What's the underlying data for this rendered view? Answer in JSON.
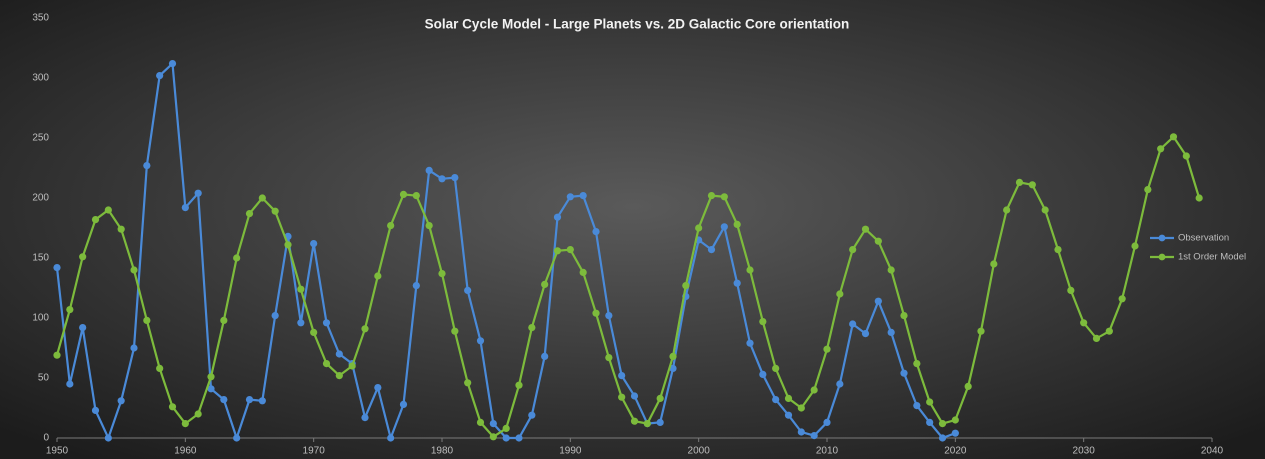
{
  "chart_data": {
    "type": "line",
    "title": "Solar Cycle Model - Large Planets vs. 2D Galactic Core orientation",
    "xlim": [
      1950,
      2040
    ],
    "xticks": [
      1950,
      1960,
      1970,
      1980,
      1990,
      2000,
      2010,
      2020,
      2030,
      2040
    ],
    "ylim": [
      0,
      350
    ],
    "yticks": [
      0,
      50,
      100,
      150,
      200,
      250,
      300,
      350
    ],
    "legend": "right",
    "series": [
      {
        "name": "Observation",
        "color": "#4a8ad8",
        "x": [
          1950,
          1951,
          1952,
          1953,
          1954,
          1955,
          1956,
          1957,
          1958,
          1959,
          1960,
          1961,
          1962,
          1963,
          1964,
          1965,
          1966,
          1967,
          1968,
          1969,
          1970,
          1971,
          1972,
          1973,
          1974,
          1975,
          1976,
          1977,
          1978,
          1979,
          1980,
          1981,
          1982,
          1983,
          1984,
          1985,
          1986,
          1987,
          1988,
          1989,
          1990,
          1991,
          1992,
          1993,
          1994,
          1995,
          1996,
          1997,
          1998,
          1999,
          2000,
          2001,
          2002,
          2003,
          2004,
          2005,
          2006,
          2007,
          2008,
          2009,
          2010,
          2011,
          2012,
          2013,
          2014,
          2015,
          2016,
          2017,
          2018,
          2019,
          2020
        ],
        "values": [
          142,
          45,
          92,
          23,
          0,
          31,
          75,
          227,
          302,
          312,
          192,
          204,
          41,
          32,
          0,
          32,
          31,
          102,
          168,
          96,
          162,
          96,
          70,
          62,
          17,
          42,
          0,
          28,
          127,
          223,
          216,
          217,
          123,
          81,
          12,
          0,
          0,
          19,
          68,
          184,
          201,
          202,
          172,
          102,
          52,
          35,
          12,
          13,
          58,
          118,
          165,
          157,
          176,
          129,
          79,
          53,
          32,
          19,
          5,
          2,
          13,
          45,
          95,
          87,
          114,
          88,
          54,
          27,
          13,
          0,
          4
        ]
      },
      {
        "name": "1st Order Model",
        "color": "#7dbb3c",
        "x": [
          1950,
          1951,
          1952,
          1953,
          1954,
          1955,
          1956,
          1957,
          1958,
          1959,
          1960,
          1961,
          1962,
          1963,
          1964,
          1965,
          1966,
          1967,
          1968,
          1969,
          1970,
          1971,
          1972,
          1973,
          1974,
          1975,
          1976,
          1977,
          1978,
          1979,
          1980,
          1981,
          1982,
          1983,
          1984,
          1985,
          1986,
          1987,
          1988,
          1989,
          1990,
          1991,
          1992,
          1993,
          1994,
          1995,
          1996,
          1997,
          1998,
          1999,
          2000,
          2001,
          2002,
          2003,
          2004,
          2005,
          2006,
          2007,
          2008,
          2009,
          2010,
          2011,
          2012,
          2013,
          2014,
          2015,
          2016,
          2017,
          2018,
          2019,
          2020,
          2021,
          2022,
          2023,
          2024,
          2025,
          2026,
          2027,
          2028,
          2029,
          2030,
          2031,
          2032,
          2033,
          2034,
          2035,
          2036,
          2037,
          2038,
          2039
        ],
        "values": [
          69,
          107,
          151,
          182,
          190,
          174,
          140,
          98,
          58,
          26,
          12,
          20,
          51,
          98,
          150,
          187,
          200,
          189,
          161,
          124,
          88,
          62,
          52,
          60,
          91,
          135,
          177,
          203,
          202,
          177,
          137,
          89,
          46,
          13,
          1,
          8,
          44,
          92,
          128,
          156,
          157,
          138,
          104,
          67,
          34,
          14,
          12,
          33,
          68,
          127,
          175,
          202,
          201,
          178,
          140,
          97,
          58,
          33,
          25,
          40,
          74,
          120,
          157,
          174,
          164,
          140,
          102,
          62,
          30,
          12,
          15,
          43,
          89,
          145,
          190,
          213,
          211,
          190,
          157,
          123,
          96,
          83,
          89,
          116,
          160,
          207,
          241,
          251,
          235,
          200
        ]
      }
    ]
  }
}
